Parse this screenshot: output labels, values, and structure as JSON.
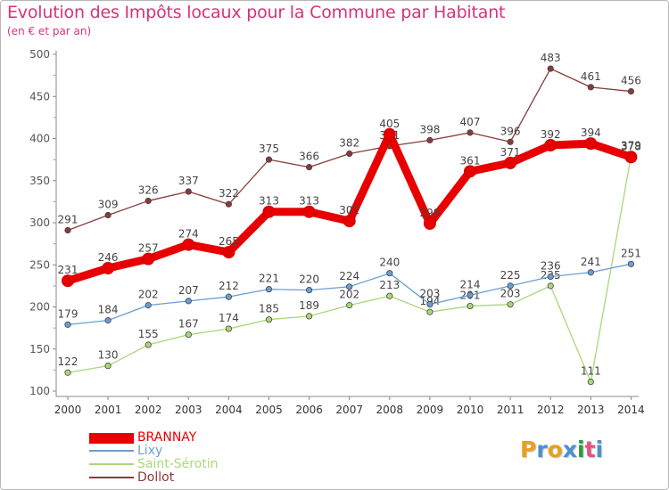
{
  "title": "Evolution des Impôts locaux pour la Commune par Habitant",
  "subtitle": "(en € et par an)",
  "logo": {
    "letters": [
      "P",
      "r",
      "o",
      "x",
      "i",
      "t",
      "i"
    ],
    "colors": [
      "#e8a020",
      "#4a90d0",
      "#e8a020",
      "#4a90d0",
      "#2a9a3a",
      "#e85080",
      "#4a90d0"
    ]
  },
  "chart_data": {
    "type": "line",
    "title": "Evolution des Impôts locaux pour la Commune par Habitant",
    "ylabel": "(en € et par an)",
    "xlabel": "",
    "ylim": [
      100,
      500
    ],
    "yticks": [
      100,
      150,
      200,
      250,
      300,
      350,
      400,
      450,
      500
    ],
    "categories": [
      "2000",
      "2001",
      "2002",
      "2003",
      "2004",
      "2005",
      "2006",
      "2007",
      "2008",
      "2009",
      "2010",
      "2011",
      "2012",
      "2013",
      "2014"
    ],
    "series": [
      {
        "name": "BRANNAY",
        "color": "#e80000",
        "values": [
          231,
          246,
          257,
          274,
          265,
          313,
          313,
          302,
          405,
          299,
          361,
          371,
          392,
          394,
          378
        ]
      },
      {
        "name": "Lixy",
        "color": "#6a9ed2",
        "values": [
          179,
          184,
          202,
          207,
          212,
          221,
          220,
          224,
          240,
          203,
          214,
          225,
          236,
          241,
          251
        ]
      },
      {
        "name": "Saint-Sérotin",
        "color": "#a8d878",
        "values": [
          122,
          130,
          155,
          167,
          174,
          185,
          189,
          202,
          213,
          194,
          201,
          203,
          225,
          111,
          379
        ]
      },
      {
        "name": "Dollot",
        "color": "#8a3a3a",
        "values": [
          291,
          309,
          326,
          337,
          322,
          375,
          366,
          382,
          391,
          398,
          407,
          396,
          483,
          461,
          456
        ]
      }
    ]
  },
  "legend": [
    {
      "name": "BRANNAY",
      "color": "#e80000"
    },
    {
      "name": "Lixy",
      "color": "#6a9ed2"
    },
    {
      "name": "Saint-Sérotin",
      "color": "#a8d878"
    },
    {
      "name": "Dollot",
      "color": "#8a3a3a"
    }
  ]
}
